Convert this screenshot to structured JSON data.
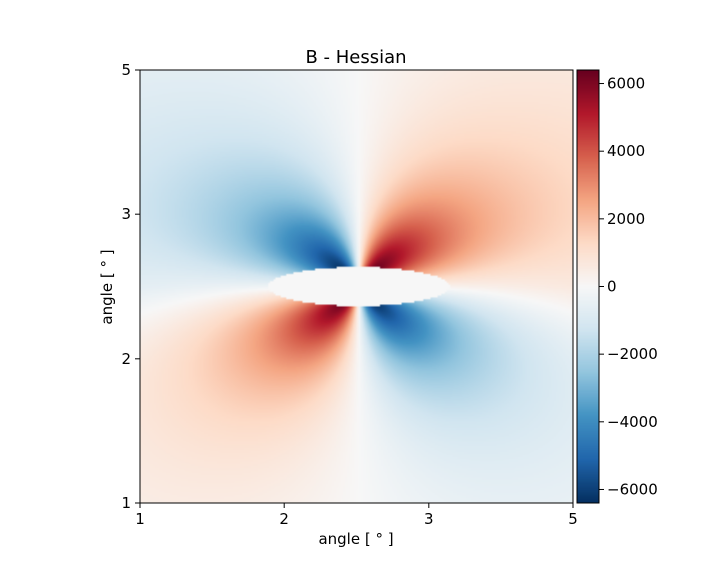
{
  "chart_data": {
    "type": "heatmap",
    "title": "B - Hessian",
    "xlabel": "angle [$^\\circ$]",
    "ylabel": "angle [$^\\circ$]",
    "xlabel_display": "angle [ ° ]",
    "ylabel_display": "angle [ ° ]",
    "x_ticks": [
      {
        "label": "1",
        "frac": 0.0
      },
      {
        "label": "2",
        "frac": 0.333
      },
      {
        "label": "3",
        "frac": 0.667
      },
      {
        "label": "5",
        "frac": 1.0
      }
    ],
    "y_ticks": [
      {
        "label": "1",
        "frac": 0.0
      },
      {
        "label": "2",
        "frac": 0.333
      },
      {
        "label": "3",
        "frac": 0.667
      },
      {
        "label": "5",
        "frac": 1.0
      }
    ],
    "colorbar": {
      "colormap": "RdBu_r",
      "vmin": -6400,
      "vmax": 6400,
      "ticks": [
        6000,
        4000,
        2000,
        0,
        -2000,
        -4000,
        -6000
      ],
      "tick_labels": [
        "6000",
        "4000",
        "2000",
        "0",
        "−2000",
        "−4000",
        "−6000"
      ]
    },
    "field_description": "quadrupole pattern: negative upper-left / lower-right, positive upper-right / lower-left, masked ellipse at centre",
    "grid": false
  }
}
